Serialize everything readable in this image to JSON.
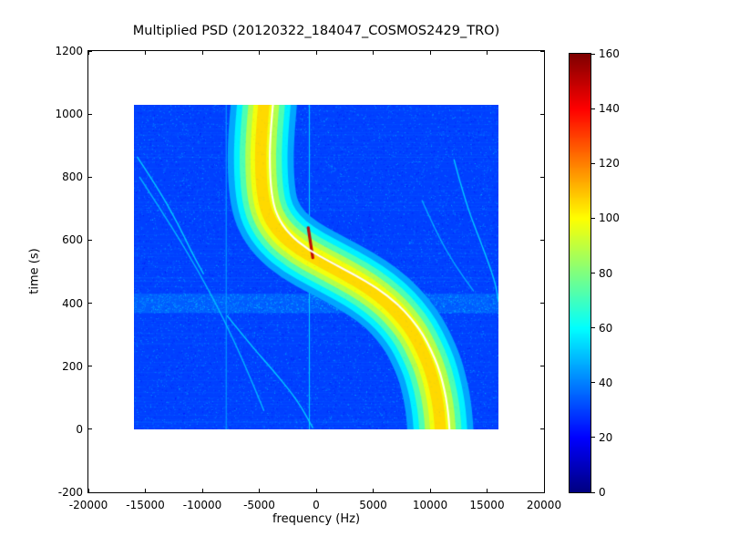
{
  "chart_data": {
    "type": "heatmap",
    "title": "Multiplied PSD (20120322_184047_COSMOS2429_TRO)",
    "xlabel": "frequency (Hz)",
    "ylabel": "time (s)",
    "xlim": [
      -20000,
      20000
    ],
    "ylim": [
      -200,
      1200
    ],
    "xticks": [
      -20000,
      -15000,
      -10000,
      -5000,
      0,
      5000,
      10000,
      15000,
      20000
    ],
    "yticks": [
      -200,
      0,
      200,
      400,
      600,
      800,
      1000,
      1200
    ],
    "grid": false,
    "legend": null,
    "colormap": "jet",
    "colorbar": {
      "vmin": 0,
      "vmax": 160,
      "ticks": [
        0,
        20,
        40,
        60,
        80,
        100,
        120,
        140,
        160
      ],
      "position": "right"
    },
    "data_extent": {
      "freq_hz": [
        -16000,
        16000
      ],
      "time_s": [
        0,
        1030
      ]
    },
    "background_value": 30,
    "doppler_band": {
      "description": "main satellite Doppler S-curve, bright band with white peak line",
      "points_time_freq": [
        [
          1030,
          -4600
        ],
        [
          950,
          -4800
        ],
        [
          850,
          -4900
        ],
        [
          750,
          -4750
        ],
        [
          680,
          -4300
        ],
        [
          620,
          -3200
        ],
        [
          570,
          -1500
        ],
        [
          530,
          500
        ],
        [
          490,
          2600
        ],
        [
          450,
          4500
        ],
        [
          400,
          6300
        ],
        [
          350,
          7600
        ],
        [
          300,
          8600
        ],
        [
          250,
          9300
        ],
        [
          200,
          9900
        ],
        [
          150,
          10300
        ],
        [
          100,
          10600
        ],
        [
          50,
          10800
        ],
        [
          0,
          10900
        ]
      ],
      "band_layers": [
        {
          "value": 46,
          "width_hz": 5800
        },
        {
          "value": 58,
          "width_hz": 4700
        },
        {
          "value": 72,
          "width_hz": 3700
        },
        {
          "value": 88,
          "width_hz": 2700
        },
        {
          "value": 98,
          "width_hz": 1800
        },
        {
          "value": 106,
          "width_hz": 1000
        }
      ],
      "peak_line": {
        "color": "#ffffff",
        "offset_hz": 800,
        "width_hz": 170
      },
      "hot_segment": {
        "points_time_freq": [
          [
            545,
            -300
          ],
          [
            640,
            -700
          ]
        ],
        "value": 150,
        "width_hz": 260
      }
    },
    "interference_lines": [
      {
        "freq_hz": -7900,
        "value": 46,
        "width_hz": 90
      },
      {
        "freq_hz": -600,
        "value": 54,
        "width_hz": 90
      }
    ],
    "secondary_arcs": [
      {
        "value": 56,
        "width_hz": 110,
        "points_time_freq": [
          [
            864,
            -15700
          ],
          [
            760,
            -13800
          ],
          [
            650,
            -12100
          ],
          [
            560,
            -10900
          ],
          [
            494,
            -9900
          ]
        ]
      },
      {
        "value": 52,
        "width_hz": 110,
        "points_time_freq": [
          [
            800,
            -15500
          ],
          [
            650,
            -12800
          ],
          [
            500,
            -10300
          ],
          [
            350,
            -8100
          ],
          [
            200,
            -6200
          ],
          [
            60,
            -4600
          ]
        ]
      },
      {
        "value": 56,
        "width_hz": 110,
        "points_time_freq": [
          [
            360,
            -7800
          ],
          [
            270,
            -5800
          ],
          [
            180,
            -3600
          ],
          [
            90,
            -1600
          ],
          [
            5,
            -300
          ]
        ]
      },
      {
        "value": 56,
        "width_hz": 110,
        "points_time_freq": [
          [
            856,
            12100
          ],
          [
            720,
            13100
          ],
          [
            580,
            14600
          ],
          [
            470,
            15700
          ],
          [
            407,
            16000
          ]
        ]
      },
      {
        "value": 50,
        "width_hz": 110,
        "points_time_freq": [
          [
            726,
            9300
          ],
          [
            620,
            10600
          ],
          [
            520,
            12200
          ],
          [
            440,
            13800
          ]
        ]
      }
    ],
    "noise_band": {
      "time_s": [
        370,
        430
      ],
      "value": 42
    }
  }
}
